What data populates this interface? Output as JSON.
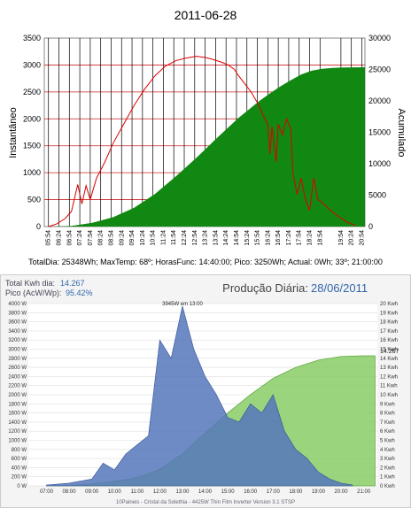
{
  "chart_data": [
    {
      "type": "area",
      "title": "2011-06-28",
      "ylabel": "Instantâneo",
      "y2label": "Acumulado",
      "ylim": [
        0,
        3500
      ],
      "y2lim": [
        0,
        30000
      ],
      "yticks": [
        "0",
        "500",
        "1000",
        "1500",
        "2000",
        "2500",
        "3000",
        "3500"
      ],
      "y2ticks": [
        "0",
        "5000",
        "10000",
        "15000",
        "20000",
        "25000",
        "30000"
      ],
      "categories": [
        "05:54",
        "06:24",
        "06:54",
        "07:24",
        "07:54",
        "08:24",
        "08:54",
        "09:24",
        "09:54",
        "10:24",
        "10:54",
        "11:24",
        "11:54",
        "12:24",
        "12:54",
        "13:24",
        "13:54",
        "14:24",
        "14:54",
        "15:24",
        "15:54",
        "16:24",
        "16:54",
        "17:24",
        "17:54",
        "18:24",
        "18:54",
        "19:54",
        "20:24",
        "20:54"
      ],
      "series": [
        {
          "role": "instantaneous",
          "color": "#dd0000",
          "x": [
            5.9,
            6.3,
            6.7,
            7.0,
            7.3,
            7.5,
            7.7,
            7.9,
            8.2,
            8.6,
            9.0,
            9.5,
            10.0,
            10.5,
            11.0,
            11.5,
            12.0,
            12.5,
            13.0,
            13.4,
            13.8,
            14.2,
            14.5,
            14.8,
            15.0,
            15.3,
            15.6,
            15.9,
            16.2,
            16.4,
            16.5,
            16.6,
            16.8,
            16.9,
            17.1,
            17.3,
            17.5,
            17.6,
            17.8,
            18.0,
            18.2,
            18.4,
            18.6,
            18.8,
            19.0,
            19.4,
            19.8,
            20.2,
            20.6
          ],
          "values": [
            0,
            50,
            150,
            280,
            780,
            420,
            760,
            500,
            900,
            1200,
            1550,
            1900,
            2250,
            2550,
            2800,
            2980,
            3080,
            3130,
            3160,
            3140,
            3100,
            3050,
            3000,
            2920,
            2800,
            2650,
            2500,
            2300,
            2050,
            1900,
            1350,
            1850,
            1200,
            1900,
            1700,
            2000,
            1800,
            1000,
            600,
            900,
            500,
            300,
            900,
            500,
            450,
            300,
            180,
            80,
            20
          ]
        },
        {
          "role": "accumulated",
          "color": "#118811",
          "x": [
            6.0,
            7.0,
            8.0,
            9.0,
            10.0,
            11.0,
            12.0,
            13.0,
            14.0,
            15.0,
            16.0,
            16.5,
            17.0,
            17.5,
            18.0,
            18.5,
            19.0,
            19.5,
            20.0,
            20.5,
            21.0
          ],
          "values": [
            0,
            100,
            600,
            1500,
            3000,
            5200,
            8000,
            11000,
            14200,
            17300,
            20000,
            21200,
            22300,
            23300,
            24200,
            24800,
            25100,
            25250,
            25320,
            25340,
            25348
          ]
        }
      ],
      "footer": "TotalDia: 25348Wh; MaxTemp: 68º; HorasFunc: 14:40:00; Pico: 3250Wh; Actual: 0Wh; 33º; 21:00:00"
    },
    {
      "type": "area",
      "title_label": "Produção Diária:",
      "title_date": "28/06/2011",
      "total_label": "Total Kwh dia:",
      "total_value": "14.267",
      "peak_label": "Pico (AcW/Wp):",
      "peak_value": "95.42%",
      "peak_annotation": "3945W em 13:00",
      "ylim": [
        0,
        4000
      ],
      "y2lim": [
        0,
        20
      ],
      "yticks": [
        "0 W",
        "200 W",
        "400 W",
        "600 W",
        "800 W",
        "1000 W",
        "1200 W",
        "1400 W",
        "1600 W",
        "1800 W",
        "2000 W",
        "2200 W",
        "2400 W",
        "2600 W",
        "2800 W",
        "3000 W",
        "3200 W",
        "3400 W",
        "3600 W",
        "3800 W",
        "4000 W"
      ],
      "y2ticks": [
        "0 Kwh",
        "1 Kwh",
        "2 Kwh",
        "3 Kwh",
        "4 Kwh",
        "5 Kwh",
        "6 Kwh",
        "7 Kwh",
        "8 Kwh",
        "9 Kwh",
        "10 Kwh",
        "11 Kwh",
        "12 Kwh",
        "13 Kwh",
        "14 Kwh",
        "15 Kwh",
        "16 Kwh",
        "17 Kwh",
        "18 Kwh",
        "19 Kwh",
        "20 Kwh"
      ],
      "end_label": "14.267",
      "categories": [
        "07:00",
        "08:00",
        "09:00",
        "10:00",
        "11:00",
        "12:00",
        "13:00",
        "14:00",
        "15:00",
        "16:00",
        "17:00",
        "18:00",
        "19:00",
        "20:00",
        "21:00"
      ],
      "series": [
        {
          "role": "power",
          "color": "#5577bb",
          "x": [
            7.0,
            8.0,
            9.0,
            9.5,
            10.0,
            10.5,
            11.0,
            11.5,
            12.0,
            12.5,
            13.0,
            13.5,
            14.0,
            14.5,
            15.0,
            15.5,
            16.0,
            16.5,
            17.0,
            17.5,
            18.0,
            18.5,
            19.0,
            19.5,
            20.0,
            20.5
          ],
          "values": [
            20,
            60,
            150,
            500,
            350,
            700,
            900,
            1100,
            3200,
            2800,
            3945,
            3000,
            2400,
            2000,
            1500,
            1400,
            1800,
            1600,
            2000,
            1200,
            800,
            600,
            300,
            150,
            60,
            20
          ]
        },
        {
          "role": "energy",
          "color": "#88cc66",
          "x": [
            7.0,
            8.0,
            9.0,
            10.0,
            11.0,
            12.0,
            13.0,
            14.0,
            15.0,
            16.0,
            17.0,
            18.0,
            19.0,
            20.0,
            21.0,
            21.5
          ],
          "values": [
            0,
            0.05,
            0.2,
            0.5,
            0.9,
            1.8,
            3.5,
            5.8,
            8.0,
            10.0,
            11.8,
            13.0,
            13.8,
            14.2,
            14.267,
            14.267
          ]
        }
      ],
      "footer": "10Paineis - Cristal da Solethia - 4425W Thin Film Inverter Version 3.1 STSP"
    }
  ]
}
